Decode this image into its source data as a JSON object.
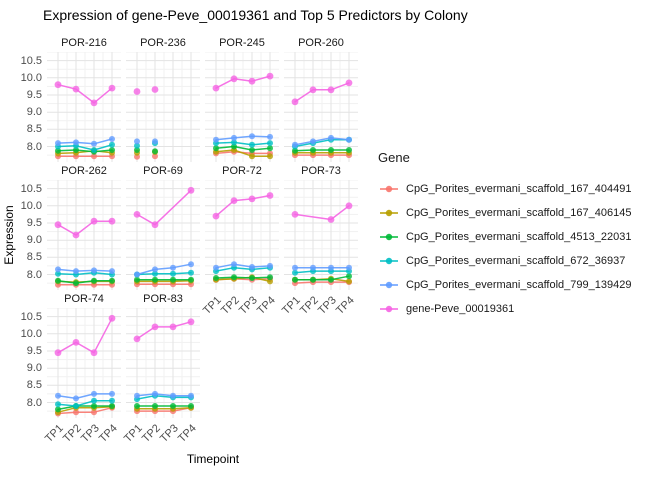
{
  "title": "Expression of gene-Peve_00019361 and Top 5 Predictors by Colony",
  "axes": {
    "x_title": "Timepoint",
    "y_title": "Expression",
    "x_ticks": [
      "TP1",
      "TP2",
      "TP3",
      "TP4"
    ],
    "y_tick_labels": [
      "10.5",
      "10.0",
      "9.5",
      "9.0",
      "8.5",
      "8.0"
    ],
    "y_ticks": [
      10.5,
      10.0,
      9.5,
      9.0,
      8.5,
      8.0
    ]
  },
  "legend": {
    "title": "Gene",
    "items": [
      {
        "label": "CpG_Porites_evermani_scaffold_167_404491",
        "color": "#F8766D"
      },
      {
        "label": "CpG_Porites_evermani_scaffold_167_406145",
        "color": "#B79F00"
      },
      {
        "label": "CpG_Porites_evermani_scaffold_4513_22031",
        "color": "#00BA38"
      },
      {
        "label": "CpG_Porites_evermani_scaffold_672_36937",
        "color": "#00BFC4"
      },
      {
        "label": "CpG_Porites_evermani_scaffold_799_139429",
        "color": "#619CFF"
      },
      {
        "label": "gene-Peve_00019361",
        "color": "#F564E3"
      }
    ]
  },
  "chart_data": {
    "type": "line",
    "x": [
      "TP1",
      "TP2",
      "TP3",
      "TP4"
    ],
    "ylim": [
      7.55,
      10.75
    ],
    "grid": "on",
    "legend_position": "right",
    "series_names": [
      "CpG_Porites_evermani_scaffold_167_404491",
      "CpG_Porites_evermani_scaffold_167_406145",
      "CpG_Porites_evermani_scaffold_4513_22031",
      "CpG_Porites_evermani_scaffold_672_36937",
      "CpG_Porites_evermani_scaffold_799_139429",
      "gene-Peve_00019361"
    ],
    "series_colors": [
      "#F8766D",
      "#B79F00",
      "#00BA38",
      "#00BFC4",
      "#619CFF",
      "#F564E3"
    ],
    "facets": [
      {
        "colony": "POR-216",
        "lines": true,
        "series": [
          [
            7.72,
            7.72,
            7.72,
            7.72
          ],
          [
            7.8,
            7.82,
            7.88,
            7.82
          ],
          [
            7.88,
            7.9,
            7.85,
            7.9
          ],
          [
            8.0,
            8.02,
            7.9,
            8.05
          ],
          [
            8.1,
            8.12,
            8.08,
            8.22
          ],
          [
            9.8,
            9.67,
            9.27,
            9.7
          ]
        ]
      },
      {
        "colony": "POR-236",
        "lines": false,
        "series": [
          [
            7.7,
            7.72,
            null,
            null
          ],
          [
            7.82,
            7.84,
            null,
            null
          ],
          [
            7.9,
            7.86,
            null,
            null
          ],
          [
            8.02,
            8.1,
            null,
            null
          ],
          [
            8.15,
            8.15,
            null,
            null
          ],
          [
            9.6,
            9.66,
            null,
            null
          ]
        ]
      },
      {
        "colony": "POR-245",
        "lines": true,
        "series": [
          [
            7.8,
            7.85,
            7.8,
            7.8
          ],
          [
            7.85,
            7.9,
            7.72,
            7.72
          ],
          [
            7.95,
            8.0,
            7.9,
            7.95
          ],
          [
            8.1,
            8.12,
            8.05,
            8.1
          ],
          [
            8.2,
            8.25,
            8.3,
            8.28
          ],
          [
            9.7,
            9.97,
            9.9,
            10.05
          ]
        ]
      },
      {
        "colony": "POR-260",
        "lines": true,
        "series": [
          [
            7.75,
            7.75,
            7.75,
            7.75
          ],
          [
            7.82,
            7.82,
            7.82,
            7.82
          ],
          [
            7.88,
            7.9,
            7.9,
            7.9
          ],
          [
            8.0,
            8.1,
            8.2,
            8.2
          ],
          [
            8.05,
            8.15,
            8.25,
            8.2
          ],
          [
            9.3,
            9.65,
            9.65,
            9.85
          ]
        ]
      },
      {
        "colony": "POR-262",
        "lines": true,
        "series": [
          [
            7.7,
            7.7,
            7.7,
            7.7
          ],
          [
            7.8,
            7.78,
            7.8,
            7.8
          ],
          [
            7.82,
            7.75,
            7.82,
            7.82
          ],
          [
            8.02,
            8.0,
            8.05,
            8.0
          ],
          [
            8.15,
            8.1,
            8.12,
            8.1
          ],
          [
            9.45,
            9.15,
            9.55,
            9.55
          ]
        ]
      },
      {
        "colony": "POR-69",
        "lines": true,
        "series": [
          [
            7.72,
            7.72,
            7.72,
            7.72
          ],
          [
            7.8,
            7.8,
            7.8,
            7.82
          ],
          [
            7.85,
            7.85,
            7.85,
            7.85
          ],
          [
            8.0,
            8.02,
            8.02,
            8.05
          ],
          [
            8.0,
            8.15,
            8.2,
            8.3
          ],
          [
            9.75,
            9.45,
            null,
            10.45
          ]
        ]
      },
      {
        "colony": "POR-72",
        "lines": true,
        "series": [
          [
            7.85,
            7.88,
            7.85,
            7.88
          ],
          [
            7.85,
            7.88,
            7.92,
            7.8
          ],
          [
            7.9,
            7.92,
            7.9,
            7.92
          ],
          [
            8.1,
            8.2,
            8.15,
            8.2
          ],
          [
            8.2,
            8.3,
            8.22,
            8.25
          ],
          [
            9.7,
            10.15,
            10.2,
            10.3
          ]
        ]
      },
      {
        "colony": "POR-73",
        "lines": true,
        "series": [
          [
            7.75,
            7.78,
            7.78,
            7.78
          ],
          [
            7.85,
            7.85,
            7.88,
            7.8
          ],
          [
            7.85,
            7.85,
            7.85,
            7.95
          ],
          [
            8.05,
            8.1,
            8.1,
            8.1
          ],
          [
            8.2,
            8.2,
            8.2,
            8.2
          ],
          [
            9.75,
            null,
            9.6,
            10.0
          ]
        ]
      },
      {
        "colony": "POR-74",
        "lines": true,
        "series": [
          [
            7.68,
            7.72,
            7.72,
            7.85
          ],
          [
            7.72,
            7.85,
            7.85,
            7.88
          ],
          [
            7.8,
            7.9,
            7.9,
            7.9
          ],
          [
            7.95,
            7.9,
            8.05,
            8.05
          ],
          [
            8.2,
            8.12,
            8.25,
            8.25
          ],
          [
            9.45,
            9.75,
            9.45,
            10.45
          ]
        ]
      },
      {
        "colony": "POR-83",
        "lines": true,
        "series": [
          [
            7.75,
            7.75,
            7.75,
            7.85
          ],
          [
            7.82,
            7.82,
            7.82,
            7.85
          ],
          [
            7.9,
            7.9,
            7.9,
            7.9
          ],
          [
            8.1,
            8.2,
            8.15,
            8.15
          ],
          [
            8.2,
            8.25,
            8.2,
            8.2
          ],
          [
            9.85,
            10.2,
            10.2,
            10.35
          ]
        ]
      }
    ]
  }
}
